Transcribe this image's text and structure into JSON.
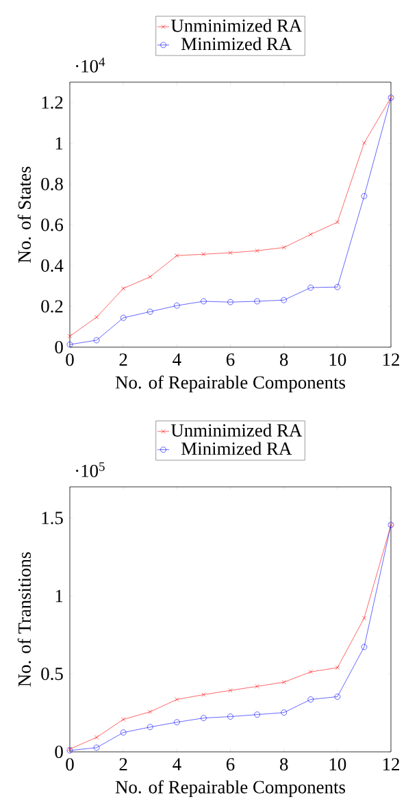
{
  "chart_data": [
    {
      "type": "line",
      "xlabel": "No. of Repairable Components",
      "ylabel": "No. of States",
      "annotations": [
        "·10$^{4}$"
      ],
      "xlim": [
        0,
        12
      ],
      "xticks": [
        0,
        2,
        4,
        6,
        8,
        10,
        12
      ],
      "ylim": [
        0,
        1.3
      ],
      "yticks": [
        0,
        0.2,
        0.4,
        0.6,
        0.8,
        1,
        1.2
      ],
      "legend": "top",
      "x": [
        0,
        1,
        2,
        3,
        4,
        5,
        6,
        7,
        8,
        9,
        10,
        11,
        12
      ],
      "series": [
        {
          "name": "Unminimized RA",
          "color": "#ff0000",
          "marker": "cross",
          "values": [
            0.054,
            0.147,
            0.288,
            0.345,
            0.449,
            0.456,
            0.463,
            0.473,
            0.489,
            0.553,
            0.613,
            1.002,
            1.224
          ]
        },
        {
          "name": "Minimized RA",
          "color": "#0000ff",
          "marker": "circle",
          "values": [
            0.013,
            0.034,
            0.144,
            0.174,
            0.204,
            0.225,
            0.221,
            0.225,
            0.231,
            0.292,
            0.295,
            0.741,
            1.224
          ]
        }
      ]
    },
    {
      "type": "line",
      "xlabel": "No. of Repairable Components",
      "ylabel": "No. of Transitions",
      "annotations": [
        "·10$^{5}$"
      ],
      "xlim": [
        0,
        12
      ],
      "xticks": [
        0,
        2,
        4,
        6,
        8,
        10,
        12
      ],
      "ylim": [
        0,
        1.7
      ],
      "yticks": [
        0,
        0.5,
        1,
        1.5
      ],
      "legend": "top",
      "x": [
        0,
        1,
        2,
        3,
        4,
        5,
        6,
        7,
        8,
        9,
        10,
        11,
        12
      ],
      "series": [
        {
          "name": "Unminimized RA",
          "color": "#ff0000",
          "marker": "cross",
          "values": [
            0.018,
            0.093,
            0.208,
            0.257,
            0.336,
            0.367,
            0.394,
            0.42,
            0.447,
            0.513,
            0.54,
            0.858,
            1.456
          ]
        },
        {
          "name": "Minimized RA",
          "color": "#0000ff",
          "marker": "circle",
          "values": [
            0.009,
            0.027,
            0.124,
            0.159,
            0.19,
            0.217,
            0.226,
            0.239,
            0.252,
            0.336,
            0.354,
            0.673,
            1.456
          ]
        }
      ]
    }
  ]
}
